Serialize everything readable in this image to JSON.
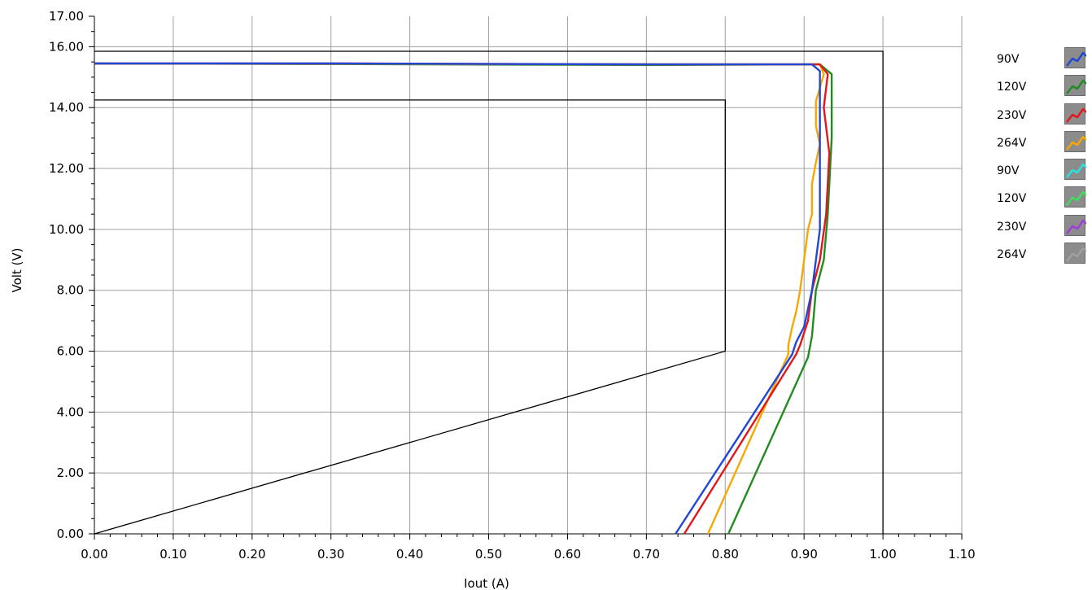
{
  "chart_data": {
    "type": "line",
    "xlabel": "Iout (A)",
    "ylabel": "Volt (V)",
    "xlim": [
      0,
      1.1
    ],
    "ylim": [
      0,
      17
    ],
    "x_major_ticks": [
      "0.00",
      "0.10",
      "0.20",
      "0.30",
      "0.40",
      "0.50",
      "0.60",
      "0.70",
      "0.80",
      "0.90",
      "1.00",
      "1.10"
    ],
    "y_major_ticks": [
      "0.00",
      "2.00",
      "4.00",
      "6.00",
      "8.00",
      "10.00",
      "12.00",
      "14.00",
      "16.00",
      "17.00"
    ],
    "grid": true,
    "legend_position": "right",
    "limits": [
      {
        "name": "upper-limit",
        "color": "#000000",
        "points": [
          [
            0,
            15.85
          ],
          [
            1.0,
            15.85
          ],
          [
            1.0,
            0
          ]
        ]
      },
      {
        "name": "lower-limit",
        "color": "#000000",
        "points": [
          [
            0,
            14.25
          ],
          [
            0.8,
            14.25
          ],
          [
            0.8,
            6.0
          ],
          [
            0,
            0
          ]
        ]
      }
    ],
    "series": [
      {
        "name": "90V",
        "color": "#1f48d6",
        "points": [
          [
            0,
            15.45
          ],
          [
            0.3,
            15.45
          ],
          [
            0.7,
            15.42
          ],
          [
            0.91,
            15.42
          ],
          [
            0.92,
            15.2
          ],
          [
            0.92,
            10
          ],
          [
            0.91,
            8
          ],
          [
            0.9,
            6.8
          ],
          [
            0.89,
            6.3
          ],
          [
            0.885,
            5.9
          ],
          [
            0.737,
            0
          ]
        ]
      },
      {
        "name": "120V",
        "color": "#228b22",
        "points": [
          [
            0,
            15.45
          ],
          [
            0.3,
            15.43
          ],
          [
            0.7,
            15.4
          ],
          [
            0.92,
            15.42
          ],
          [
            0.935,
            15.1
          ],
          [
            0.935,
            13
          ],
          [
            0.93,
            10.5
          ],
          [
            0.925,
            9
          ],
          [
            0.915,
            8
          ],
          [
            0.91,
            6.5
          ],
          [
            0.905,
            5.8
          ],
          [
            0.804,
            0
          ]
        ]
      },
      {
        "name": "230V",
        "color": "#e01818",
        "points": [
          [
            0,
            15.45
          ],
          [
            0.32,
            15.45
          ],
          [
            0.73,
            15.42
          ],
          [
            0.92,
            15.42
          ],
          [
            0.93,
            15.1
          ],
          [
            0.925,
            14
          ],
          [
            0.932,
            12.5
          ],
          [
            0.928,
            10.5
          ],
          [
            0.92,
            9
          ],
          [
            0.91,
            8
          ],
          [
            0.905,
            7
          ],
          [
            0.895,
            6.2
          ],
          [
            0.89,
            5.9
          ],
          [
            0.748,
            0
          ]
        ]
      },
      {
        "name": "264V",
        "color": "#f7a800",
        "points": [
          [
            0,
            15.45
          ],
          [
            0.3,
            15.44
          ],
          [
            0.7,
            15.42
          ],
          [
            0.92,
            15.42
          ],
          [
            0.925,
            15.1
          ],
          [
            0.915,
            14.2
          ],
          [
            0.915,
            13.4
          ],
          [
            0.92,
            12.8
          ],
          [
            0.915,
            12.2
          ],
          [
            0.91,
            11.5
          ],
          [
            0.91,
            10.5
          ],
          [
            0.905,
            10
          ],
          [
            0.9,
            9
          ],
          [
            0.895,
            8
          ],
          [
            0.89,
            7.3
          ],
          [
            0.885,
            6.8
          ],
          [
            0.88,
            6.2
          ],
          [
            0.88,
            5.9
          ],
          [
            0.778,
            0
          ]
        ]
      },
      {
        "name": "90V",
        "color": "#2de0e0",
        "points": []
      },
      {
        "name": "120V",
        "color": "#3ee05a",
        "points": []
      },
      {
        "name": "230V",
        "color": "#a03cdc",
        "points": []
      },
      {
        "name": "264V",
        "color": "#a0a0a0",
        "points": []
      }
    ]
  }
}
